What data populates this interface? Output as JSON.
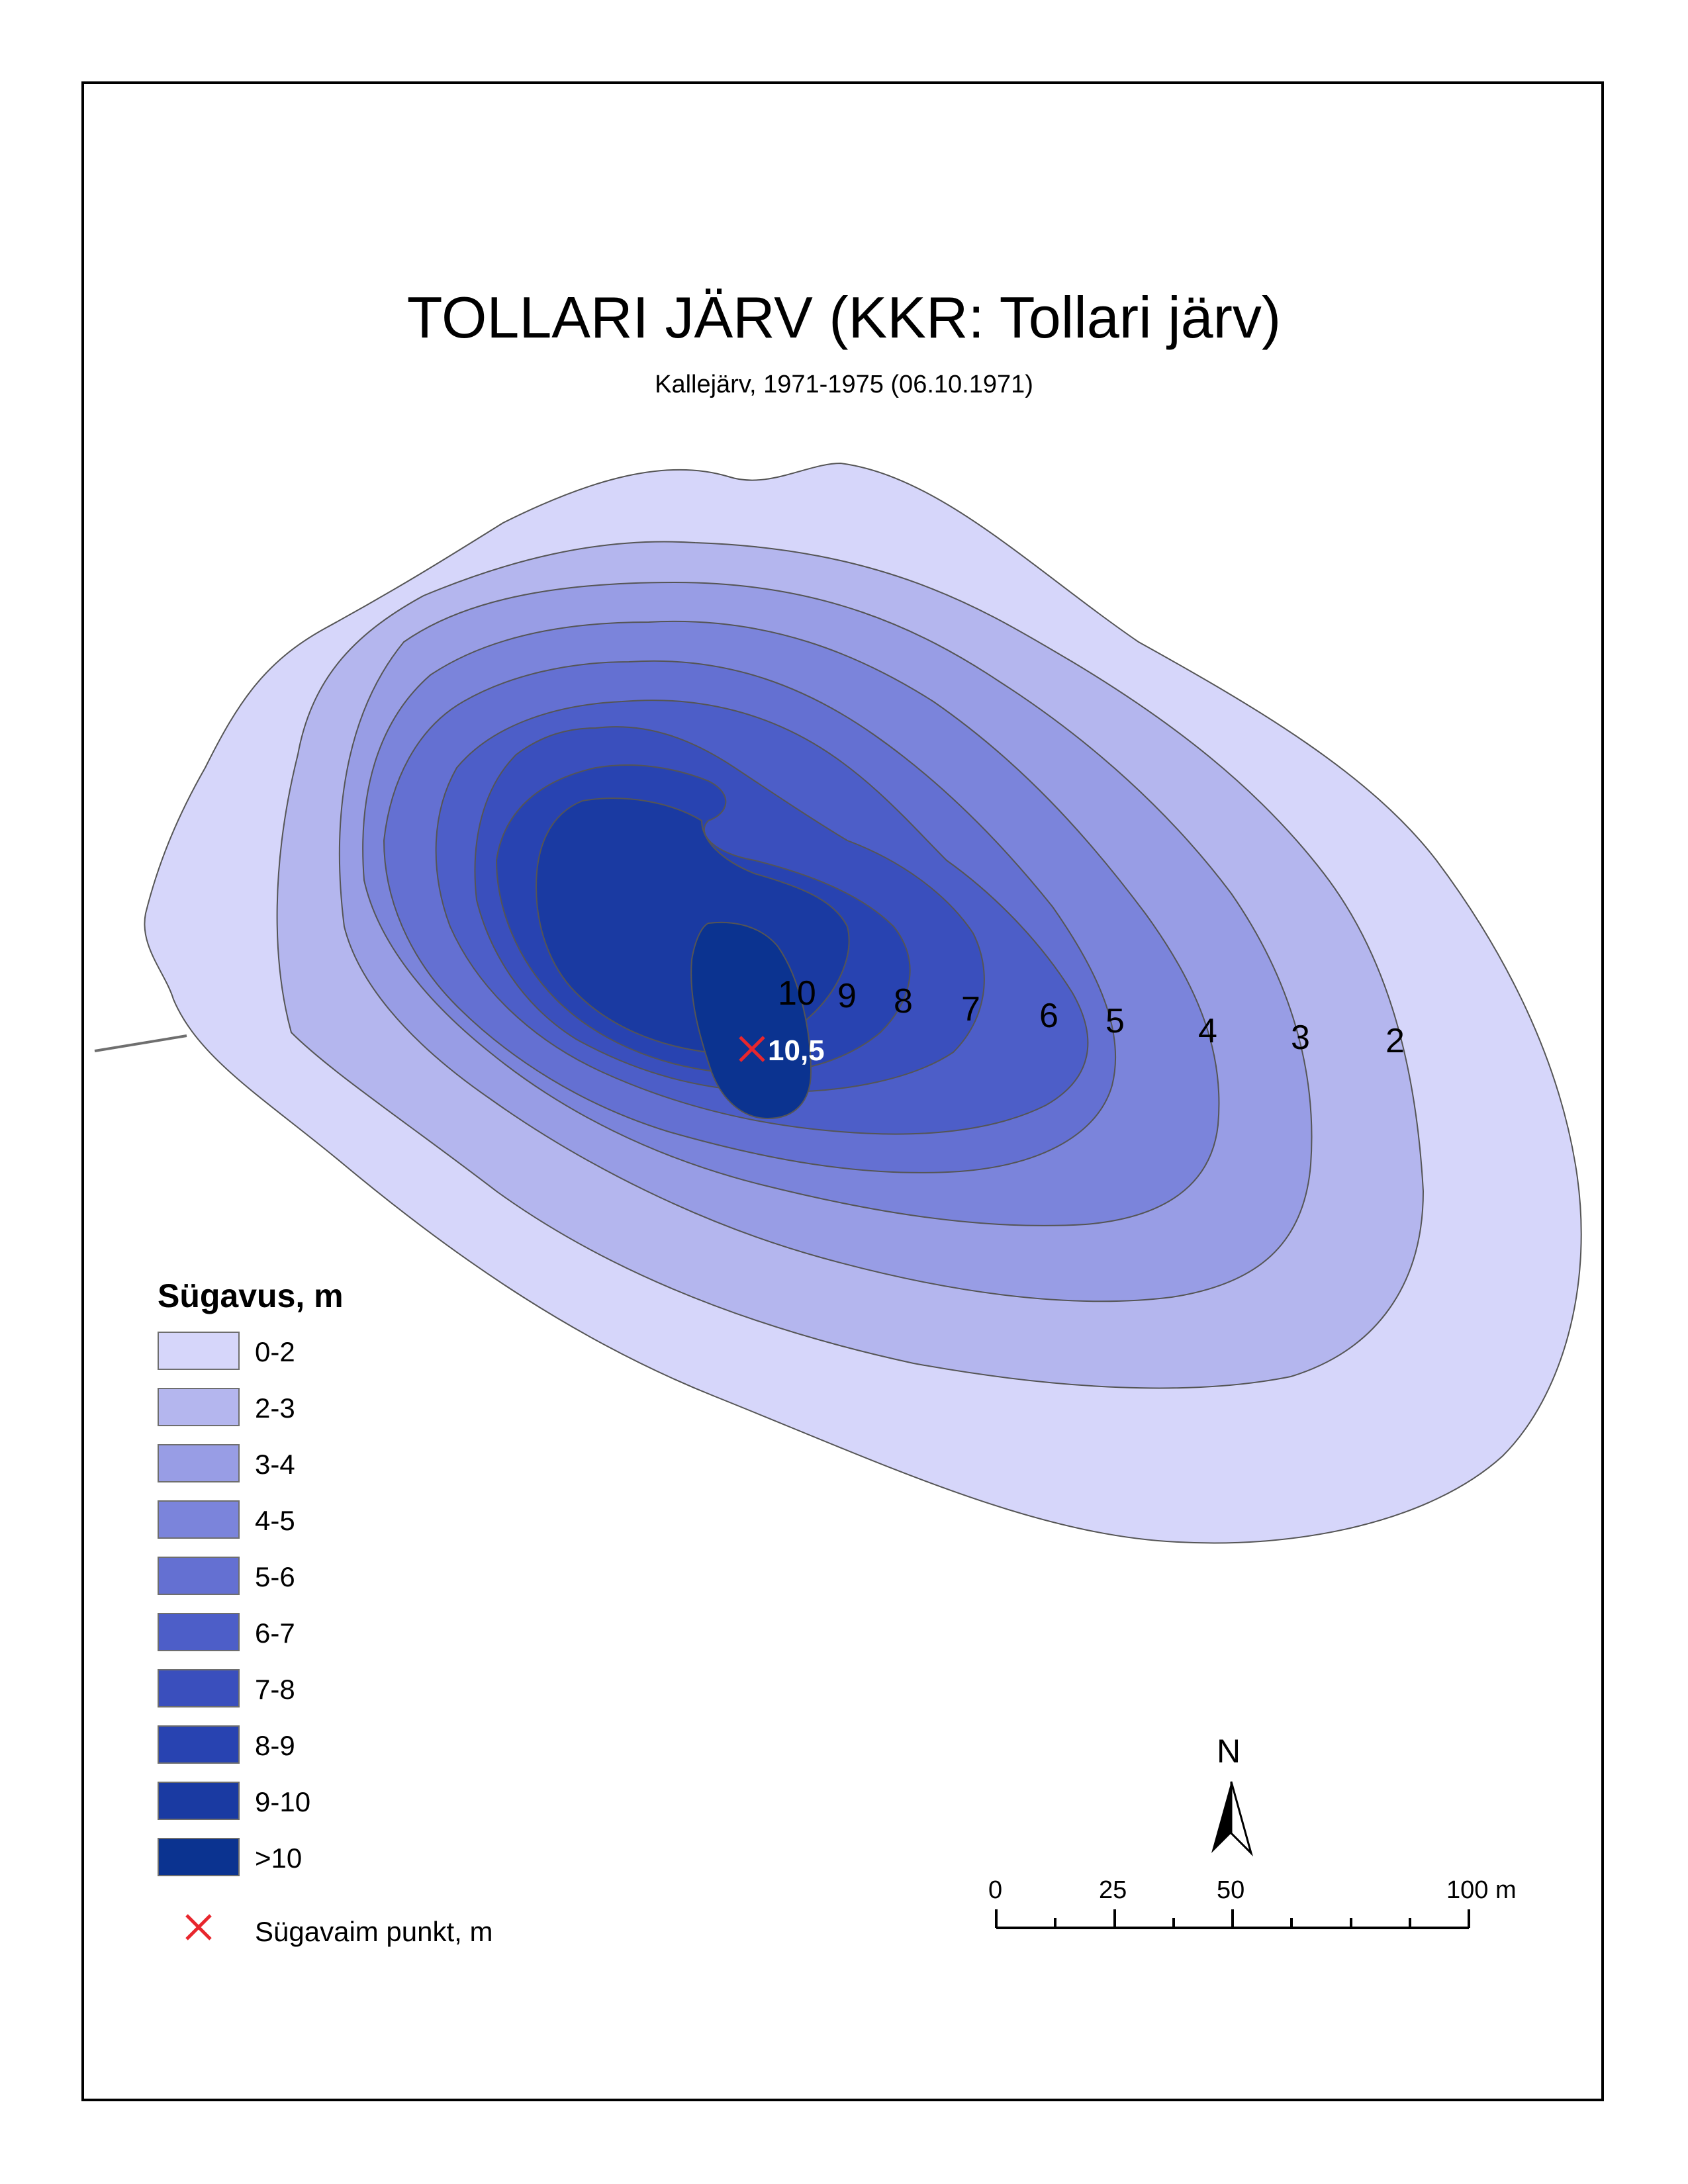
{
  "map": {
    "title": "TOLLARI JÄRV (KKR: Tollari järv)",
    "subtitle": "Kallejärv, 1971-1975 (06.10.1971)",
    "contour_labels": [
      "10",
      "9",
      "8",
      "7",
      "6",
      "5",
      "4",
      "3",
      "2"
    ],
    "deepest_point": {
      "value": "10,5",
      "color": "#e8262d"
    }
  },
  "legend": {
    "title": "Sügavus, m",
    "items": [
      {
        "label": "0-2",
        "color": "#d6d6fa"
      },
      {
        "label": "2-3",
        "color": "#b4b6ee"
      },
      {
        "label": "3-4",
        "color": "#989de5"
      },
      {
        "label": "4-5",
        "color": "#7b84db"
      },
      {
        "label": "5-6",
        "color": "#6470d2"
      },
      {
        "label": "6-7",
        "color": "#4d5ec8"
      },
      {
        "label": "7-8",
        "color": "#3a4fbd"
      },
      {
        "label": "8-9",
        "color": "#2843b1"
      },
      {
        "label": "9-10",
        "color": "#1a3aa2"
      },
      {
        "label": ">10",
        "color": "#0b3390"
      }
    ],
    "deepest_label": "Sügavaim punkt, m"
  },
  "north_arrow": {
    "label": "N"
  },
  "scale_bar": {
    "labels": [
      "0",
      "25",
      "50",
      "100 m"
    ]
  }
}
